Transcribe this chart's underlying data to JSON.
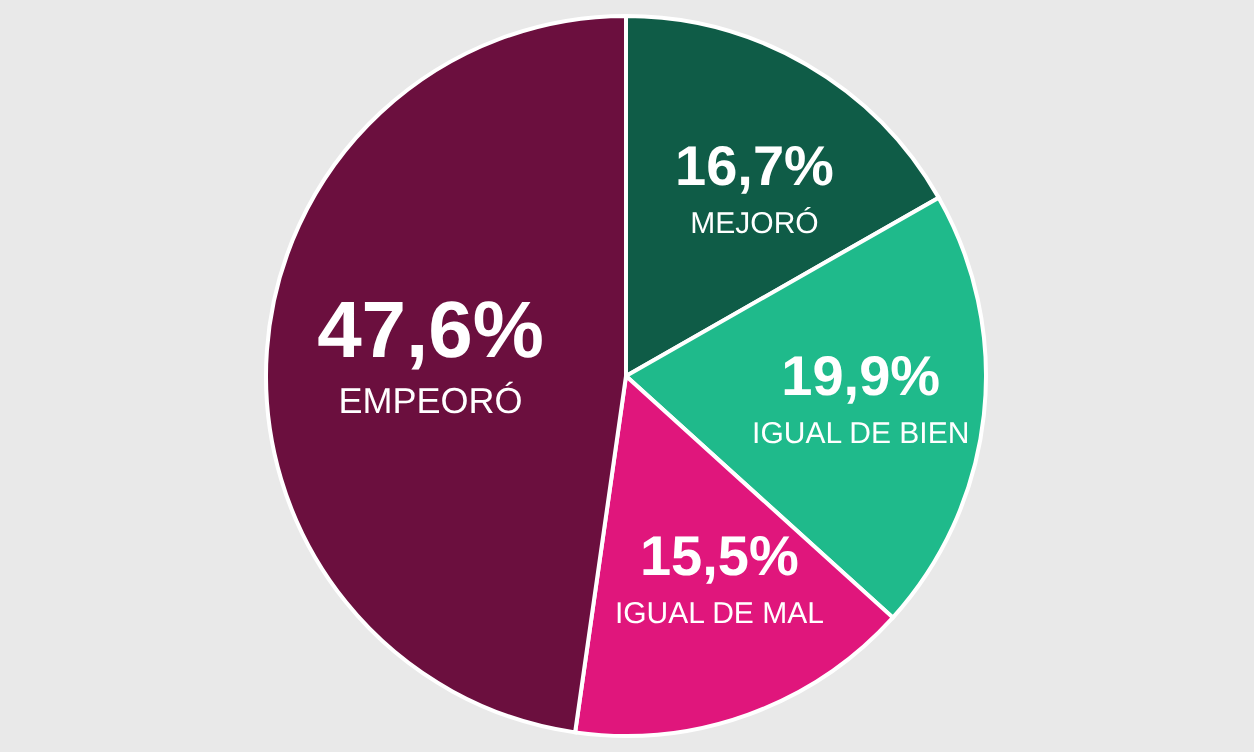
{
  "chart_data": {
    "type": "pie",
    "categories": [
      "MEJORÓ",
      "IGUAL DE BIEN",
      "IGUAL DE MAL",
      "EMPEORÓ"
    ],
    "values": [
      16.7,
      19.9,
      15.5,
      47.6
    ],
    "colors": [
      "#0f5c47",
      "#1fba8b",
      "#e0167c",
      "#6b0f3e"
    ],
    "value_labels": [
      "16,7%",
      "19,9%",
      "15,5%",
      "47,6%"
    ]
  }
}
